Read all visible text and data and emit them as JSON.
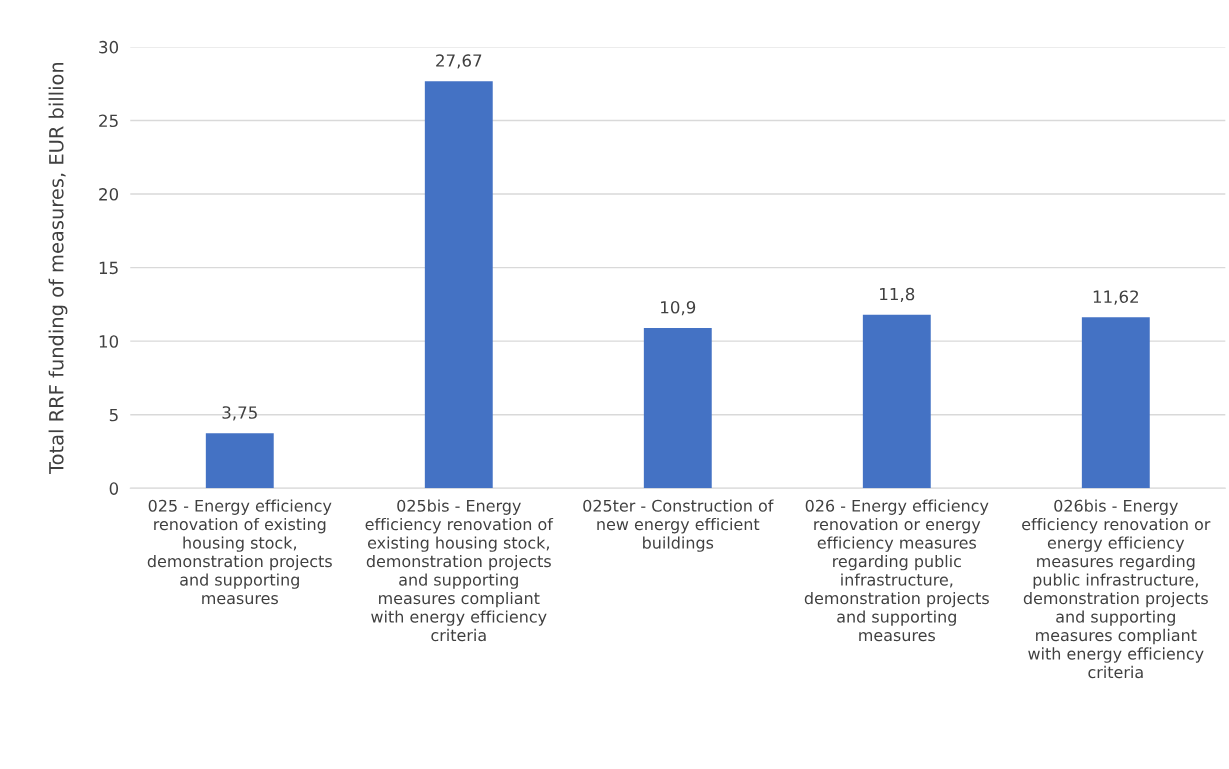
{
  "chart_data": {
    "type": "bar",
    "ylabel": "Total RRF funding of measures, EUR billion",
    "categories": [
      "025 - Energy efficiency\nrenovation of existing\nhousing stock,\ndemonstration projects\nand supporting\nmeasures",
      "025bis - Energy\nefficiency renovation of\nexisting housing stock,\ndemonstration projects\nand supporting\nmeasures compliant\nwith energy efficiency\ncriteria",
      "025ter - Construction of\nnew energy efficient\nbuildings",
      "026 - Energy efficiency\nrenovation or energy\nefficiency measures\nregarding public\ninfrastructure,\ndemonstration projects\nand supporting\nmeasures",
      "026bis - Energy\nefficiency renovation or\nenergy efficiency\nmeasures regarding\npublic infrastructure,\ndemonstration projects\nand supporting\nmeasures compliant\nwith energy efficiency\ncriteria"
    ],
    "values": [
      3.75,
      27.67,
      10.9,
      11.8,
      11.62
    ],
    "value_labels": [
      "3,75",
      "27,67",
      "10,9",
      "11,8",
      "11,62"
    ],
    "color": "#4472c4",
    "ylim": [
      0,
      30
    ],
    "yticks": [
      0,
      5,
      10,
      15,
      20,
      25,
      30
    ],
    "grid": "y",
    "legend": false
  }
}
